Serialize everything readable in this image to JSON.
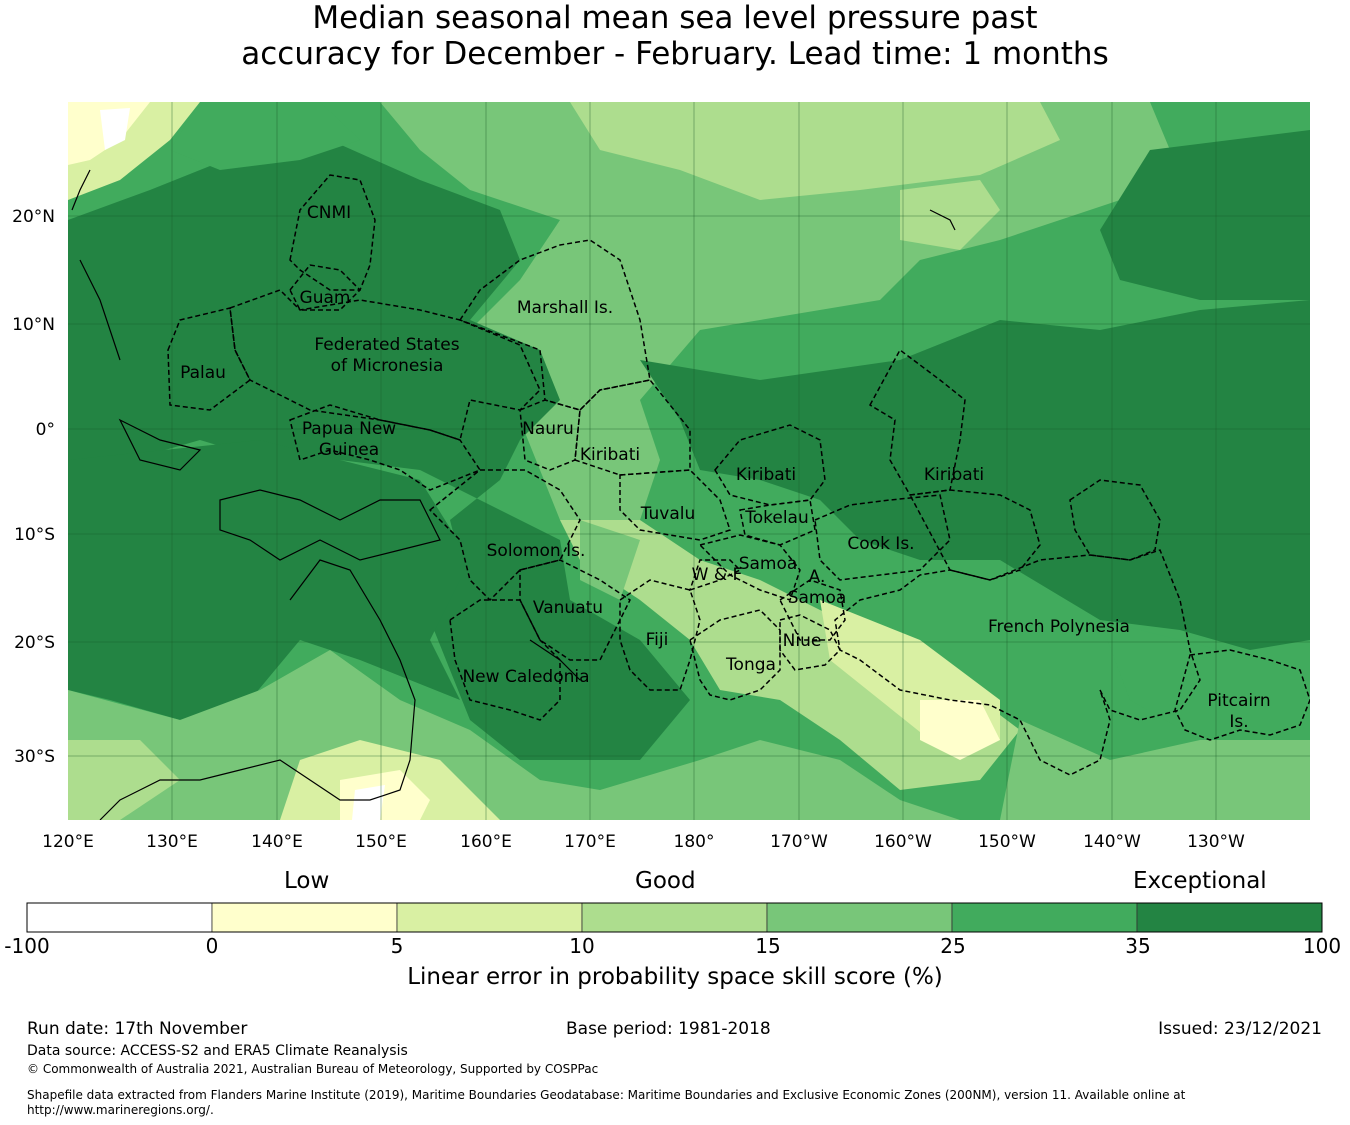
{
  "title_line1": "Median seasonal mean sea level pressure past",
  "title_line2": "accuracy for December - February. Lead time: 1 months",
  "lat_ticks": [
    "20°N",
    "10°N",
    "0°",
    "10°S",
    "20°S",
    "30°S"
  ],
  "lon_ticks": [
    "120°E",
    "130°E",
    "140°E",
    "150°E",
    "160°E",
    "170°E",
    "180°",
    "170°W",
    "160°W",
    "150°W",
    "140°W",
    "130°W"
  ],
  "regions": [
    {
      "name": "CNMI"
    },
    {
      "name": "Guam"
    },
    {
      "name": "Marshall Is."
    },
    {
      "name": "Federated States"
    },
    {
      "name": "of Micronesia"
    },
    {
      "name": "Palau"
    },
    {
      "name": "Nauru"
    },
    {
      "name": "Papua New"
    },
    {
      "name": "Guinea"
    },
    {
      "name": "Kiribati"
    },
    {
      "name": "Kiribati"
    },
    {
      "name": "Kiribati"
    },
    {
      "name": "Tuvalu"
    },
    {
      "name": "Tokelau"
    },
    {
      "name": "Cook Is."
    },
    {
      "name": "Solomon Is."
    },
    {
      "name": "Samoa"
    },
    {
      "name": "W & F"
    },
    {
      "name": "A."
    },
    {
      "name": "Samoa"
    },
    {
      "name": "Vanuatu"
    },
    {
      "name": "French Polynesia"
    },
    {
      "name": "Fiji"
    },
    {
      "name": "Niue"
    },
    {
      "name": "Tonga"
    },
    {
      "name": "New Caledonia"
    },
    {
      "name": "Pitcairn"
    },
    {
      "name": "Is."
    }
  ],
  "legend": {
    "skill_labels": {
      "low": "Low",
      "good": "Good",
      "exceptional": "Exceptional"
    },
    "bins": [
      {
        "from": -100,
        "to": 0,
        "color": "#ffffff"
      },
      {
        "from": 0,
        "to": 5,
        "color": "#ffffcc"
      },
      {
        "from": 5,
        "to": 10,
        "color": "#d9f0a3"
      },
      {
        "from": 10,
        "to": 15,
        "color": "#addd8e"
      },
      {
        "from": 15,
        "to": 25,
        "color": "#78c679"
      },
      {
        "from": 25,
        "to": 35,
        "color": "#41ab5d"
      },
      {
        "from": 35,
        "to": 100,
        "color": "#238443"
      }
    ],
    "ticks": [
      "-100",
      "0",
      "5",
      "10",
      "15",
      "25",
      "35",
      "100"
    ],
    "title": "Linear error in probability space skill score (%)"
  },
  "run_date": "Run date: 17th November",
  "base_period": "Base period: 1981-2018",
  "issued": "Issued: 23/12/2021",
  "data_source": "Data source: ACCESS-S2 and ERA5 Climate Reanalysis",
  "copyright": "© Commonwealth of Australia 2021, Australian Bureau of Meteorology, Supported by COSPPac",
  "shapefile_note_line1": "Shapefile data extracted from Flanders Marine Institute (2019), Maritime Boundaries Geodatabase: Maritime Boundaries and Exclusive Economic Zones (200NM), version 11. Available online at",
  "shapefile_note_line2": "http://www.marineregions.org/."
}
